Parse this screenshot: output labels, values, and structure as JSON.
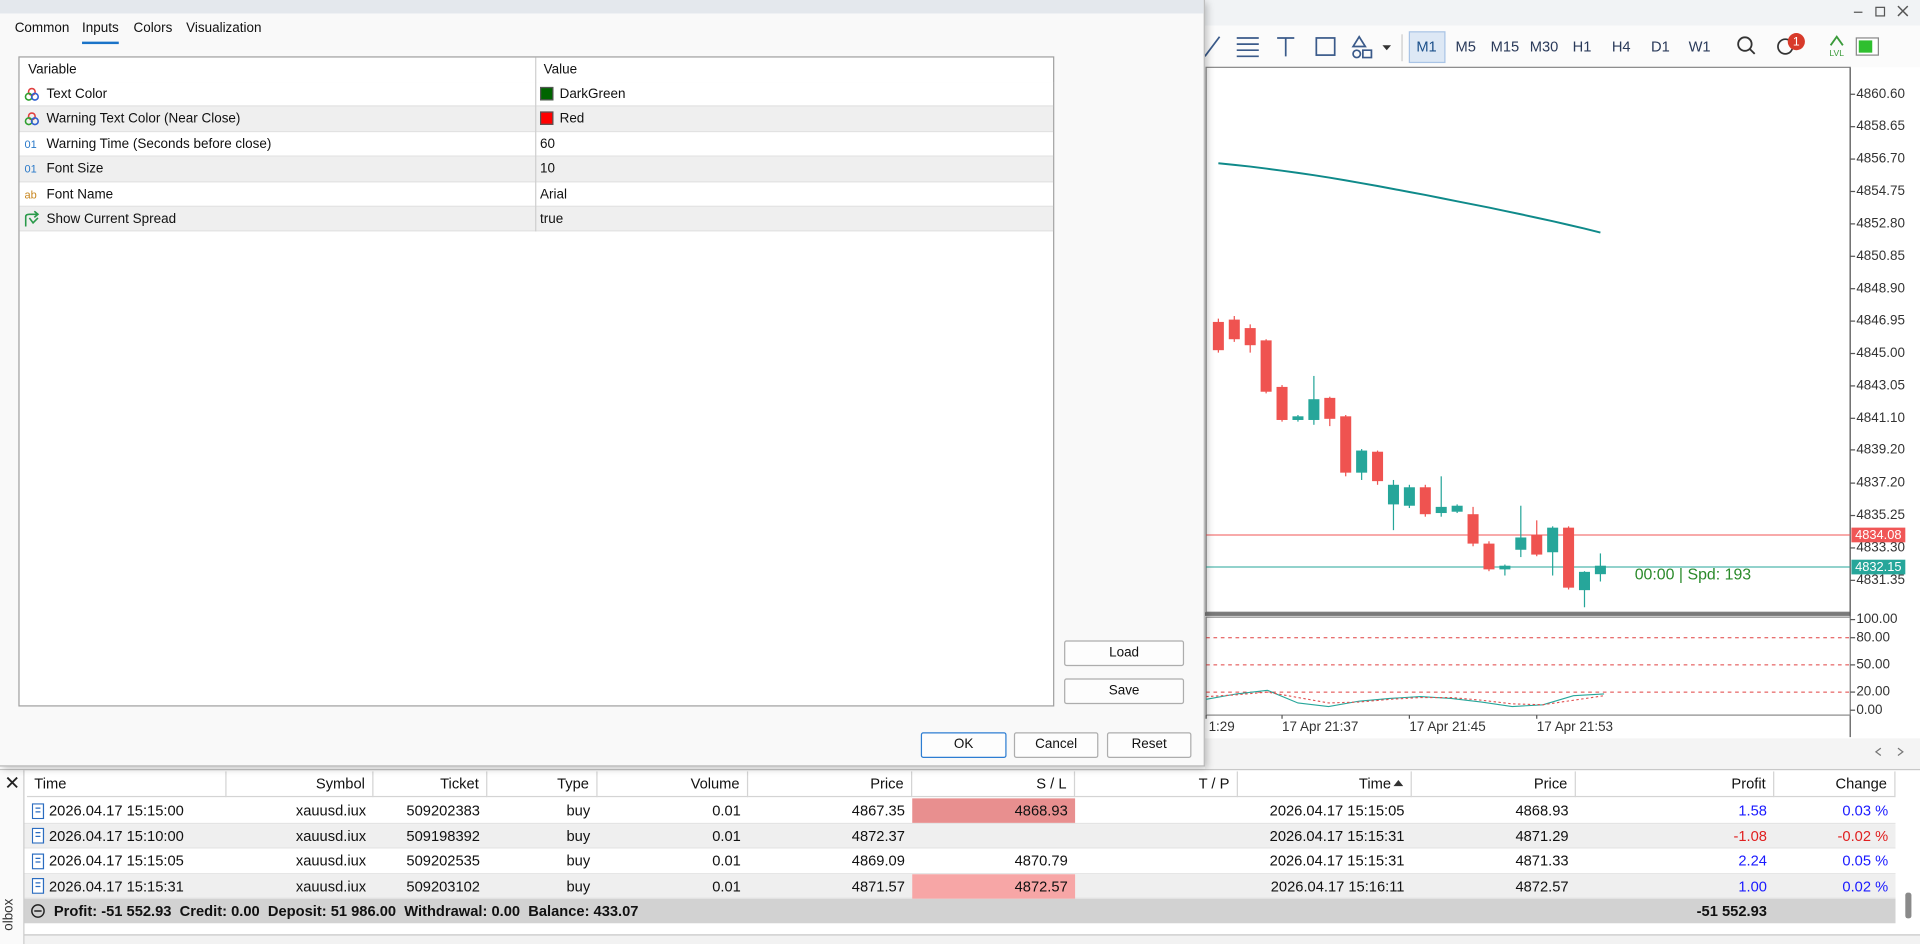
{
  "dialog": {
    "tabs": [
      "Common",
      "Inputs",
      "Colors",
      "Visualization"
    ],
    "active_tab": 1,
    "table": {
      "header": [
        "Variable",
        "Value"
      ],
      "rows": [
        {
          "icon": "color",
          "variable": "Text Color",
          "value": "DarkGreen",
          "swatch": "#006400"
        },
        {
          "icon": "color",
          "variable": "Warning Text Color (Near Close)",
          "value": "Red",
          "swatch": "#ff0000"
        },
        {
          "icon": "01",
          "variable": "Warning Time (Seconds before close)",
          "value": "60"
        },
        {
          "icon": "01",
          "variable": "Font Size",
          "value": "10"
        },
        {
          "icon": "ab",
          "variable": "Font Name",
          "value": "Arial"
        },
        {
          "icon": "bool",
          "variable": "Show Current Spread",
          "value": "true"
        }
      ]
    },
    "side_buttons": [
      "Load",
      "Save"
    ],
    "buttons": [
      "OK",
      "Cancel",
      "Reset"
    ]
  },
  "toolbar": {
    "timeframes": [
      "M1",
      "M5",
      "M15",
      "M30",
      "H1",
      "H4",
      "D1",
      "W1"
    ],
    "selected": 0,
    "alert_count": "1",
    "lvl": "LVL"
  },
  "chart_data": {
    "type": "candlestick",
    "ylim": [
      4829.43,
      4862.22
    ],
    "yticks": [
      {
        "value": 4860.6,
        "label": "4860.60"
      },
      {
        "value": 4858.65,
        "label": "4858.65"
      },
      {
        "value": 4856.7,
        "label": "4856.70"
      },
      {
        "value": 4854.75,
        "label": "4854.75"
      },
      {
        "value": 4852.8,
        "label": "4852.80"
      },
      {
        "value": 4850.85,
        "label": "4850.85"
      },
      {
        "value": 4848.9,
        "label": "4848.90"
      },
      {
        "value": 4846.95,
        "label": "4846.95"
      },
      {
        "value": 4845,
        "label": "4845.00"
      },
      {
        "value": 4843.05,
        "label": "4843.05"
      },
      {
        "value": 4841.1,
        "label": "4841.10"
      },
      {
        "value": 4839.2,
        "label": "4839.20"
      },
      {
        "value": 4837.2,
        "label": "4837.20"
      },
      {
        "value": 4835.25,
        "label": "4835.25"
      },
      {
        "value": 4833.3,
        "label": "4833.30"
      },
      {
        "value": 4831.35,
        "label": "4831.35"
      }
    ],
    "up_color": "#26a69a",
    "down_color": "#ef5350",
    "candles": [
      {
        "open": 4846.9,
        "high": 4847.1,
        "low": 4845.05,
        "close": 4845.2
      },
      {
        "open": 4847.04,
        "high": 4847.26,
        "low": 4845.7,
        "close": 4845.86
      },
      {
        "open": 4846.53,
        "high": 4846.75,
        "low": 4845.05,
        "close": 4845.5
      },
      {
        "open": 4845.79,
        "high": 4845.86,
        "low": 4842.6,
        "close": 4842.7
      },
      {
        "open": 4842.99,
        "high": 4843.1,
        "low": 4840.9,
        "close": 4841.0
      },
      {
        "open": 4841.0,
        "high": 4841.3,
        "low": 4840.9,
        "close": 4841.22
      },
      {
        "open": 4841.0,
        "high": 4843.65,
        "low": 4840.71,
        "close": 4842.25
      },
      {
        "open": 4842.33,
        "high": 4842.4,
        "low": 4840.63,
        "close": 4841.07
      },
      {
        "open": 4841.22,
        "high": 4841.3,
        "low": 4837.61,
        "close": 4837.83
      },
      {
        "open": 4837.83,
        "high": 4839.25,
        "low": 4837.39,
        "close": 4839.16
      },
      {
        "open": 4839.09,
        "high": 4839.16,
        "low": 4837.1,
        "close": 4837.32
      },
      {
        "open": 4835.92,
        "high": 4837.39,
        "low": 4834.37,
        "close": 4837.1
      },
      {
        "open": 4835.84,
        "high": 4837.1,
        "low": 4835.7,
        "close": 4836.95
      },
      {
        "open": 4836.95,
        "high": 4837.1,
        "low": 4835.18,
        "close": 4835.33
      },
      {
        "open": 4835.4,
        "high": 4837.61,
        "low": 4835.18,
        "close": 4835.77
      },
      {
        "open": 4835.48,
        "high": 4835.92,
        "low": 4835.4,
        "close": 4835.84
      },
      {
        "open": 4835.33,
        "high": 4835.77,
        "low": 4833.4,
        "close": 4833.56
      },
      {
        "open": 4833.56,
        "high": 4833.7,
        "low": 4831.9,
        "close": 4832.01
      },
      {
        "open": 4832.01,
        "high": 4832.3,
        "low": 4831.64,
        "close": 4832.23
      },
      {
        "open": 4833.19,
        "high": 4835.84,
        "low": 4832.75,
        "close": 4833.93
      },
      {
        "open": 4834.08,
        "high": 4834.96,
        "low": 4832.8,
        "close": 4832.9
      },
      {
        "open": 4833.04,
        "high": 4834.6,
        "low": 4831.64,
        "close": 4834.52
      },
      {
        "open": 4834.52,
        "high": 4834.6,
        "low": 4830.8,
        "close": 4830.91
      },
      {
        "open": 4830.76,
        "high": 4831.9,
        "low": 4829.73,
        "close": 4831.86
      },
      {
        "open": 4831.72,
        "high": 4832.97,
        "low": 4831.28,
        "close": 4832.23
      }
    ],
    "ma": {
      "color": "#0f8a8a",
      "values": [
        4856.45,
        4856.35,
        4856.25,
        4856.13,
        4856.0,
        4855.87,
        4855.73,
        4855.58,
        4855.42,
        4855.25,
        4855.08,
        4854.9,
        4854.72,
        4854.54,
        4854.35,
        4854.16,
        4853.97,
        4853.78,
        4853.58,
        4853.38,
        4853.17,
        4852.96,
        4852.74,
        4852.52,
        4852.28
      ]
    },
    "ask_line": 4834.08,
    "ask_color": "#f05656",
    "bid_line": 4832.15,
    "bid_color": "#26a69a",
    "annotation": "00:00 | Spd: 193",
    "annotation_color": "#2a8a2a",
    "time_labels": [
      "1:29",
      "17 Apr 21:37",
      "17 Apr 21:45",
      "17 Apr 21:53"
    ],
    "indicator": {
      "type": "line",
      "ylim": [
        0,
        100
      ],
      "yticks": [
        {
          "value": 100,
          "label": "100.00"
        },
        {
          "value": 80,
          "label": "80.00"
        },
        {
          "value": 50,
          "label": "50.00"
        },
        {
          "value": 20,
          "label": "20.00"
        },
        {
          "value": 0,
          "label": "0.00"
        }
      ],
      "levels": [
        80,
        50,
        20
      ],
      "level_color": "#e04040",
      "series": [
        {
          "color": "#26a69a",
          "values": [
            12,
            18,
            22,
            8,
            4,
            10,
            13,
            15,
            13,
            9,
            4,
            6,
            16,
            18
          ]
        },
        {
          "color": "#e05050",
          "values": [
            15,
            17,
            20,
            14,
            8,
            9,
            12,
            14,
            14,
            11,
            7,
            6,
            11,
            16
          ]
        }
      ]
    }
  },
  "trade_table": {
    "columns": [
      "Time",
      "Symbol",
      "Ticket",
      "Type",
      "Volume",
      "Price",
      "S / L",
      "T / P",
      "Time",
      "Price",
      "Profit",
      "Change"
    ],
    "sort_column": 8,
    "positive_color": "#1a1aff",
    "negative_color": "#e02020",
    "rows": [
      {
        "cells": [
          "2026.04.17 15:15:00",
          "xauusd.iux",
          "509202383",
          "buy",
          "0.01",
          "4867.35",
          "4868.93",
          null,
          "2026.04.17 15:15:05",
          "4868.93",
          "1.58",
          "0.03 %"
        ],
        "sl_highlight": "#e88f8f"
      },
      {
        "cells": [
          "2026.04.17 15:10:00",
          "xauusd.iux",
          "509198392",
          "buy",
          "0.01",
          "4872.37",
          null,
          null,
          "2026.04.17 15:15:31",
          "4871.29",
          "-1.08",
          "-0.02 %"
        ]
      },
      {
        "cells": [
          "2026.04.17 15:15:05",
          "xauusd.iux",
          "509202535",
          "buy",
          "0.01",
          "4869.09",
          "4870.79",
          null,
          "2026.04.17 15:15:31",
          "4871.33",
          "2.24",
          "0.05 %"
        ]
      },
      {
        "cells": [
          "2026.04.17 15:15:31",
          "xauusd.iux",
          "509203102",
          "buy",
          "0.01",
          "4871.57",
          "4872.57",
          null,
          "2026.04.17 15:16:11",
          "4872.57",
          "1.00",
          "0.02 %"
        ],
        "sl_highlight": "#f7a6a6"
      }
    ],
    "summary": {
      "text": "Profit: -51 552.93  Credit: 0.00  Deposit: 51 986.00  Withdrawal: 0.00  Balance: 433.07",
      "total": "-51 552.93"
    },
    "side_label": "olbox"
  }
}
